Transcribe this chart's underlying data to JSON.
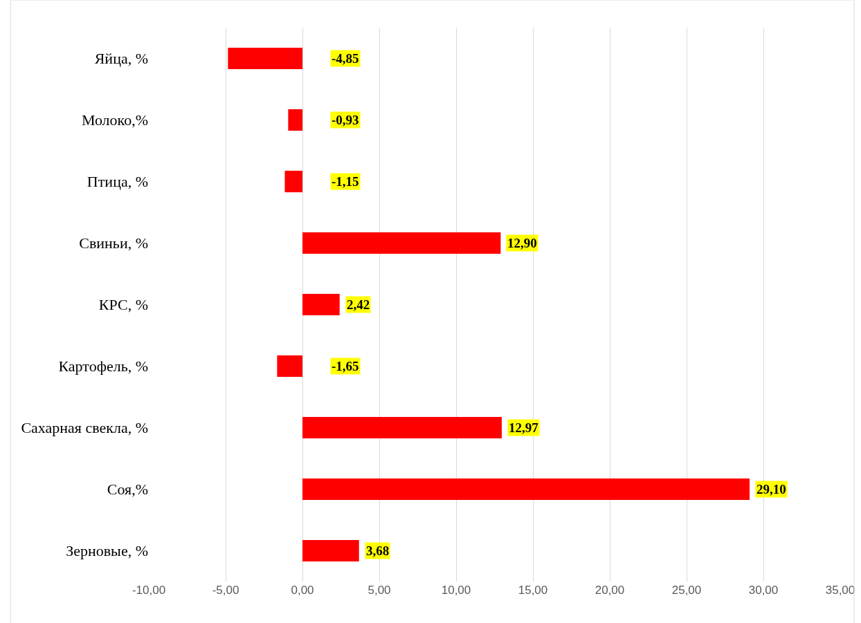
{
  "chart_data": {
    "type": "bar",
    "orientation": "horizontal",
    "categories": [
      "Яйца, %",
      "Молоко,%",
      "Птица, %",
      "Свиньи, %",
      "КРС, %",
      "Картофель, %",
      "Сахарная свекла, %",
      "Соя,%",
      "Зерновые, %"
    ],
    "values": [
      -4.85,
      -0.93,
      -1.15,
      12.9,
      2.42,
      -1.65,
      12.97,
      29.1,
      3.68
    ],
    "value_labels": [
      "-4,85",
      "-0,93",
      "-1,15",
      "12,90",
      "2,42",
      "-1,65",
      "12,97",
      "29,10",
      "3,68"
    ],
    "color": "#ff0000",
    "xlim": [
      -10,
      35
    ],
    "xticks": [
      {
        "value": -10,
        "label": "-10,00"
      },
      {
        "value": -5,
        "label": "-5,00"
      },
      {
        "value": 0,
        "label": "0,00"
      },
      {
        "value": 5,
        "label": "5,00"
      },
      {
        "value": 10,
        "label": "10,00"
      },
      {
        "value": 15,
        "label": "15,00"
      },
      {
        "value": 20,
        "label": "20,00"
      },
      {
        "value": 25,
        "label": "25,00"
      },
      {
        "value": 30,
        "label": "30,00"
      },
      {
        "value": 35,
        "label": "35,00"
      }
    ],
    "grid": "x",
    "legend": false
  }
}
